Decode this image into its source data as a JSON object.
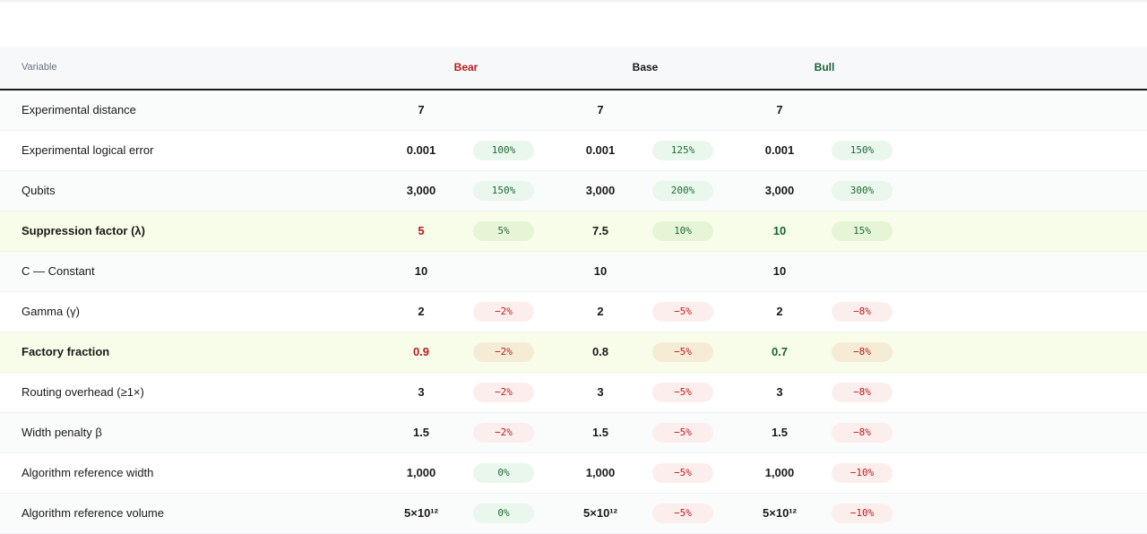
{
  "header": {
    "variable": "Variable",
    "bear": "Bear",
    "base": "Base",
    "bull": "Bull"
  },
  "colors": {
    "bear": "#b91c1c",
    "bull": "#166534",
    "highlight_row": "#f8fde9",
    "positive_pill": "#e9f7ec",
    "negative_pill": "#fdeeee"
  },
  "rows": [
    {
      "label": "Experimental distance",
      "highlight": false,
      "values": [
        "7",
        "7",
        "7"
      ],
      "pills": [
        "",
        "",
        ""
      ],
      "pill_types": [
        "empty",
        "empty",
        "empty"
      ]
    },
    {
      "label": "Experimental logical error",
      "highlight": false,
      "values": [
        "0.001",
        "0.001",
        "0.001"
      ],
      "pills": [
        "100%",
        "125%",
        "150%"
      ],
      "pill_types": [
        "pos",
        "pos",
        "pos"
      ]
    },
    {
      "label": "Qubits",
      "highlight": false,
      "values": [
        "3,000",
        "3,000",
        "3,000"
      ],
      "pills": [
        "150%",
        "200%",
        "300%"
      ],
      "pill_types": [
        "pos",
        "pos",
        "pos"
      ]
    },
    {
      "label": "Suppression factor (λ)",
      "highlight": true,
      "values": [
        "5",
        "7.5",
        "10"
      ],
      "pills": [
        "5%",
        "10%",
        "15%"
      ],
      "pill_types": [
        "pos",
        "pos",
        "pos"
      ]
    },
    {
      "label": "C — Constant",
      "highlight": false,
      "values": [
        "10",
        "10",
        "10"
      ],
      "pills": [
        "",
        "",
        ""
      ],
      "pill_types": [
        "empty",
        "empty",
        "empty"
      ]
    },
    {
      "label": "Gamma (γ)",
      "highlight": false,
      "values": [
        "2",
        "2",
        "2"
      ],
      "pills": [
        "−2%",
        "−5%",
        "−8%"
      ],
      "pill_types": [
        "neg",
        "neg",
        "neg"
      ]
    },
    {
      "label": "Factory fraction",
      "highlight": true,
      "values": [
        "0.9",
        "0.8",
        "0.7"
      ],
      "pills": [
        "−2%",
        "−5%",
        "−8%"
      ],
      "pill_types": [
        "neg",
        "neg",
        "neg"
      ]
    },
    {
      "label": "Routing overhead (≥1×)",
      "highlight": false,
      "values": [
        "3",
        "3",
        "3"
      ],
      "pills": [
        "−2%",
        "−5%",
        "−8%"
      ],
      "pill_types": [
        "neg",
        "neg",
        "neg"
      ]
    },
    {
      "label": "Width penalty β",
      "highlight": false,
      "values": [
        "1.5",
        "1.5",
        "1.5"
      ],
      "pills": [
        "−2%",
        "−5%",
        "−8%"
      ],
      "pill_types": [
        "neg",
        "neg",
        "neg"
      ]
    },
    {
      "label": "Algorithm reference width",
      "highlight": false,
      "values": [
        "1,000",
        "1,000",
        "1,000"
      ],
      "pills": [
        "0%",
        "−5%",
        "−10%"
      ],
      "pill_types": [
        "zero",
        "neg",
        "neg"
      ]
    },
    {
      "label": "Algorithm reference volume",
      "highlight": false,
      "values": [
        "5×10¹²",
        "5×10¹²",
        "5×10¹²"
      ],
      "pills": [
        "0%",
        "−5%",
        "−10%"
      ],
      "pill_types": [
        "zero",
        "neg",
        "neg"
      ]
    }
  ]
}
